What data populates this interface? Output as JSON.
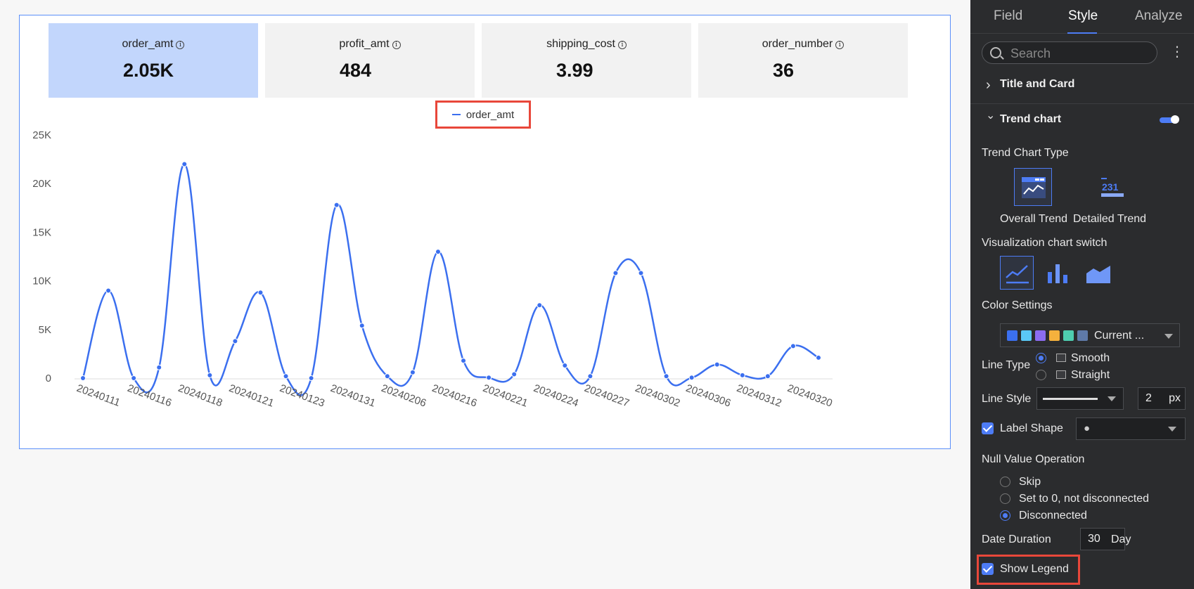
{
  "kpis": [
    {
      "label": "order_amt",
      "value": "2.05K",
      "active": true
    },
    {
      "label": "profit_amt",
      "value": "484",
      "active": false
    },
    {
      "label": "shipping_cost",
      "value": "3.99",
      "active": false
    },
    {
      "label": "order_number",
      "value": "36",
      "active": false
    }
  ],
  "info_glyph": "i",
  "legend": {
    "label": "order_amt",
    "color": "#3b6fef"
  },
  "chart_data": {
    "type": "line",
    "smooth": true,
    "series": [
      {
        "name": "order_amt",
        "color": "#3b6fef",
        "values": [
          0,
          9000,
          0,
          1100,
          22000,
          300,
          3800,
          8800,
          200,
          0,
          17800,
          5400,
          200,
          600,
          13000,
          1800,
          50,
          400,
          7500,
          1300,
          200,
          10800,
          10800,
          200,
          50,
          1400,
          300,
          200,
          3300,
          2100
        ]
      }
    ],
    "x_tick_labels": [
      "20240111",
      "20240116",
      "20240118",
      "20240121",
      "20240123",
      "20240131",
      "20240206",
      "20240216",
      "20240221",
      "20240224",
      "20240227",
      "20240302",
      "20240306",
      "20240312",
      "20240320"
    ],
    "y_tick_labels": [
      "0",
      "5K",
      "10K",
      "15K",
      "20K",
      "25K"
    ],
    "ylim": [
      0,
      25000
    ],
    "grid": false,
    "legend_position": "top-center"
  },
  "panel": {
    "tabs": [
      "Field",
      "Style",
      "Analyze"
    ],
    "active_tab": "Style",
    "search_placeholder": "Search",
    "more_glyph": "⋮",
    "chevron_right": "›",
    "chevron_down": "⌄",
    "section_title_card": "Title and Card",
    "section_trend_chart": "Trend chart",
    "trend_chart_enabled": true,
    "trend_chart_type_label": "Trend Chart Type",
    "trend_types": [
      "Overall Trend",
      "Detailed Trend"
    ],
    "detailed_trend_number": "231",
    "selected_trend_type": "Overall Trend",
    "vis_switch_label": "Visualization chart switch",
    "vis_options": [
      "line-chart-icon",
      "bar-chart-icon",
      "area-chart-icon"
    ],
    "selected_vis": "line-chart-icon",
    "color_settings_label": "Color Settings",
    "color_palette": [
      "#3b6fef",
      "#5ac8f5",
      "#8b6cf0",
      "#f5b13d",
      "#4ecdb0",
      "#5f7aa8"
    ],
    "color_value": "Current ...",
    "line_type_label": "Line Type",
    "line_type_options": [
      "Smooth",
      "Straight"
    ],
    "line_type_selected": "Smooth",
    "line_style_label": "Line Style",
    "line_width": "2",
    "line_width_unit": "px",
    "label_shape_label": "Label Shape",
    "label_shape_checked": true,
    "label_shape_glyph": "●",
    "null_value_label": "Null Value Operation",
    "null_value_options": [
      "Skip",
      "Set to 0, not disconnected",
      "Disconnected"
    ],
    "null_value_selected": "Disconnected",
    "date_duration_label": "Date Duration",
    "date_duration_value": "30",
    "date_duration_unit": "Day",
    "show_legend_label": "Show Legend",
    "show_legend_checked": true
  }
}
